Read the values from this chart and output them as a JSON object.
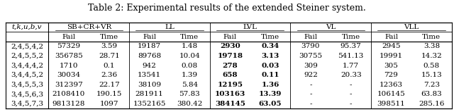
{
  "title": "Table 2: Experimental results of the extended Steiner system.",
  "col_groups": [
    "SB+CR+VR",
    "LL",
    "LVL",
    "VL",
    "VLL"
  ],
  "row_header": "t,k,u,b,v",
  "rows": [
    {
      "label": "2,4,5,4,2",
      "data": [
        "57329",
        "3.59",
        "19187",
        "1.48",
        "2930",
        "0.34",
        "3790",
        "95.37",
        "2945",
        "3.38"
      ],
      "bold": [
        false,
        false,
        false,
        false,
        true,
        true,
        false,
        false,
        false,
        false
      ]
    },
    {
      "label": "2,4,5,5,2",
      "data": [
        "356785",
        "28.71",
        "89768",
        "10.04",
        "19718",
        "3.13",
        "30755",
        "541.13",
        "19991",
        "14.32"
      ],
      "bold": [
        false,
        false,
        false,
        false,
        true,
        true,
        false,
        false,
        false,
        false
      ]
    },
    {
      "label": "3,4,4,4,2",
      "data": [
        "1710",
        "0.1",
        "942",
        "0.08",
        "278",
        "0.03",
        "309",
        "1.77",
        "305",
        "0.58"
      ],
      "bold": [
        false,
        false,
        false,
        false,
        true,
        true,
        false,
        false,
        false,
        false
      ]
    },
    {
      "label": "3,4,4,5,2",
      "data": [
        "30034",
        "2.36",
        "13541",
        "1.39",
        "658",
        "0.11",
        "922",
        "20.33",
        "729",
        "15.13"
      ],
      "bold": [
        false,
        false,
        false,
        false,
        true,
        true,
        false,
        false,
        false,
        false
      ]
    },
    {
      "label": "3,4,5,5,3",
      "data": [
        "312397",
        "22.17",
        "38109",
        "5.84",
        "12195",
        "1.36",
        "-",
        "-",
        "12363",
        "7.23"
      ],
      "bold": [
        false,
        false,
        false,
        false,
        true,
        true,
        false,
        false,
        false,
        false
      ]
    },
    {
      "label": "3,4,5,6,3",
      "data": [
        "2108410",
        "190.15",
        "281911",
        "57.83",
        "103163",
        "13.39",
        "-",
        "-",
        "106145",
        "63.83"
      ],
      "bold": [
        false,
        false,
        false,
        false,
        true,
        true,
        false,
        false,
        false,
        false
      ]
    },
    {
      "label": "3,4,5,7,3",
      "data": [
        "9813128",
        "1097",
        "1352165",
        "380.42",
        "384145",
        "63.05",
        "-",
        "-",
        "398511",
        "285.16"
      ],
      "bold": [
        false,
        false,
        false,
        false,
        true,
        true,
        false,
        false,
        false,
        false
      ]
    }
  ],
  "figsize": [
    6.4,
    1.59
  ],
  "dpi": 100,
  "font_size": 7.5,
  "title_font_size": 9.0
}
